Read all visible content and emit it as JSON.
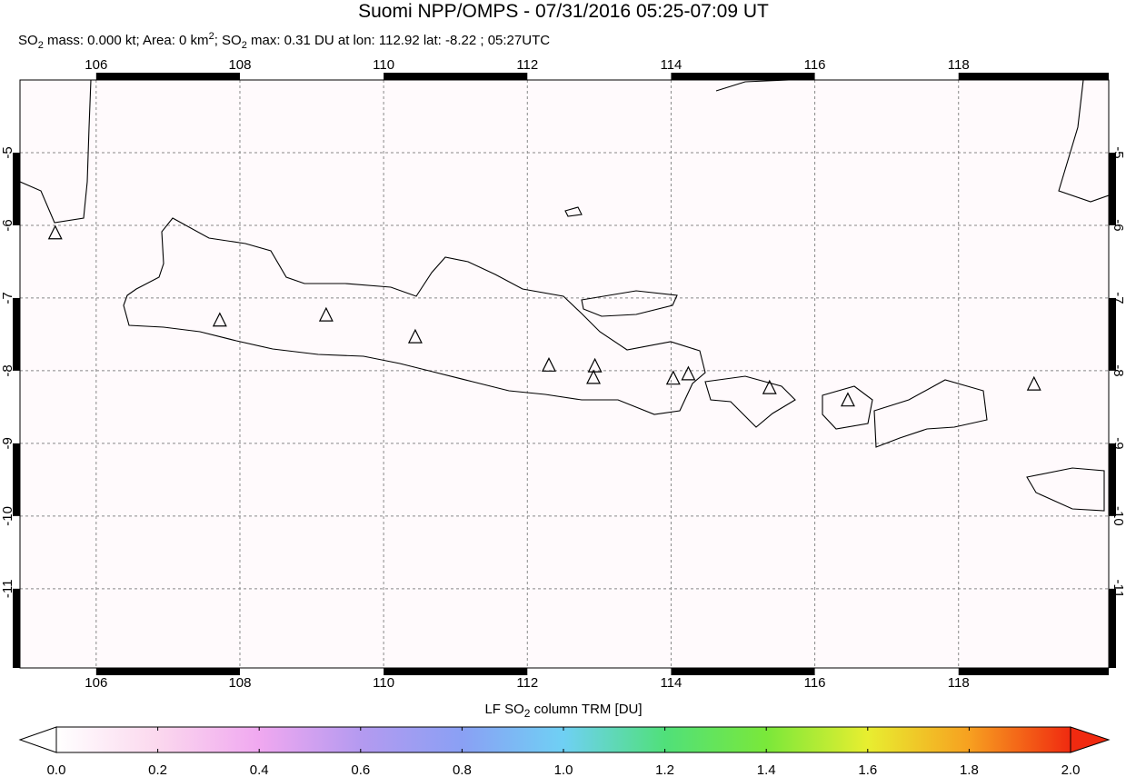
{
  "chart_data": {
    "type": "map",
    "title": "Suomi NPP/OMPS - 07/31/2016 05:25-07:09 UT",
    "subtitle": [
      "SO",
      "2",
      " mass: 0.000 kt; Area: 0 km",
      "2",
      "; SO",
      "2",
      " max: 0.31 DU at lon: 112.92 lat: -8.22 ; 05:27UTC"
    ],
    "xlim": [
      104.94,
      120.09
    ],
    "ylim": [
      -12.09,
      -4
    ],
    "xticks": [
      106,
      108,
      110,
      112,
      114,
      116,
      118
    ],
    "yticks": [
      -5,
      -6,
      -7,
      -8,
      -9,
      -10,
      -11
    ],
    "grid": true,
    "volcano_color": "#000000",
    "volcanoes": {
      "x": [
        105.43,
        107.72,
        109.2,
        110.44,
        112.3,
        112.94,
        112.92,
        114.03,
        114.24,
        115.37,
        116.46,
        119.05
      ],
      "y": [
        -6.11,
        -7.31,
        -7.24,
        -7.54,
        -7.93,
        -7.94,
        -8.1,
        -8.11,
        -8.05,
        -8.24,
        -8.41,
        -8.19
      ]
    },
    "colorbar": {
      "label": [
        "LF SO",
        "2",
        " column TRM [DU]"
      ],
      "clim": [
        0,
        2
      ],
      "ticks": [
        {
          "value": 0,
          "label": "0.0"
        },
        {
          "value": 0.2,
          "label": "0.2"
        },
        {
          "value": 0.4,
          "label": "0.4"
        },
        {
          "value": 0.6,
          "label": "0.6"
        },
        {
          "value": 0.8,
          "label": "0.8"
        },
        {
          "value": 1,
          "label": "1.0"
        },
        {
          "value": 1.2,
          "label": "1.2"
        },
        {
          "value": 1.4,
          "label": "1.4"
        },
        {
          "value": 1.6,
          "label": "1.6"
        },
        {
          "value": 1.8,
          "label": "1.8"
        },
        {
          "value": 2,
          "label": "2.0"
        }
      ]
    }
  }
}
